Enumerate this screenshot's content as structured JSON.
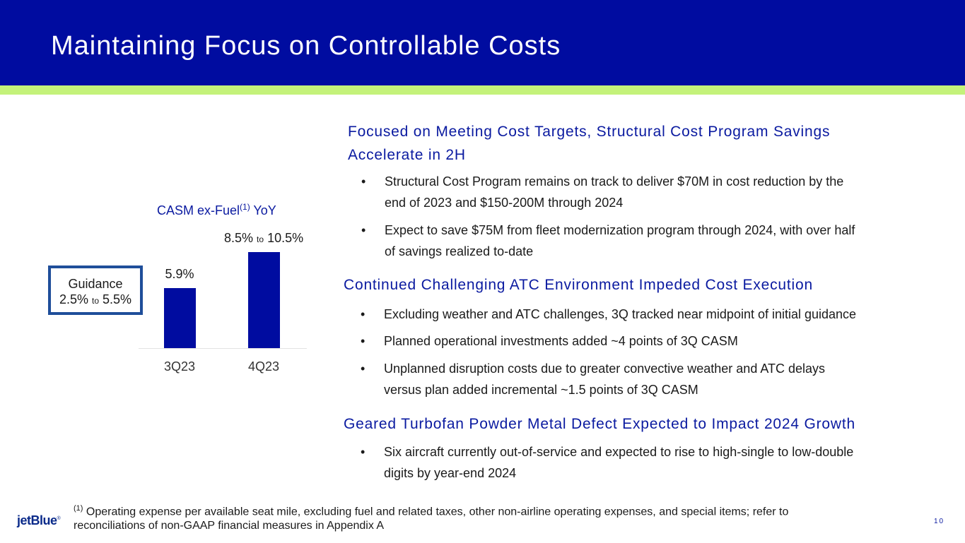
{
  "slide": {
    "title": "Maintaining Focus on Controllable Costs",
    "page_number": "10"
  },
  "chart_data": {
    "type": "bar",
    "title": "CASM ex-Fuel",
    "title_superscript": "(1)",
    "title_suffix": "YoY",
    "categories": [
      "3Q23",
      "4Q23"
    ],
    "values": [
      5.9,
      9.5
    ],
    "value_labels": [
      {
        "main": "5.9%"
      },
      {
        "low": "8.5%",
        "sep": "to",
        "high": "10.5%"
      }
    ],
    "ylim": [
      0,
      11
    ],
    "guidance": {
      "label": "Guidance",
      "low": "2.5%",
      "sep": "to",
      "high": "5.5%"
    },
    "colors": {
      "bar": "#000ca0"
    }
  },
  "sections": [
    {
      "heading": "Focused on Meeting Cost Targets, Structural Cost Program Savings",
      "heading_line2": "Accelerate in 2H",
      "bullets": [
        {
          "line1": "Structural Cost Program remains on track to deliver $70M in cost reduction by the",
          "line2": "end of 2023 and $150-200M through 2024"
        },
        {
          "line1": "Expect to save $75M from fleet modernization program through 2024, with over half",
          "line2": "of savings realized to-date"
        }
      ]
    },
    {
      "heading": "Continued Challenging ATC Environment Impeded Cost Execution",
      "bullets": [
        {
          "line1": "Excluding weather and ATC challenges, 3Q tracked near midpoint of initial guidance"
        },
        {
          "line1": "Planned operational investments added ~4 points of 3Q CASM"
        },
        {
          "line1": "Unplanned disruption costs due to greater convective weather and ATC delays",
          "line2": "versus plan added incremental ~1.5 points of 3Q CASM"
        }
      ]
    },
    {
      "heading": "Geared Turbofan Powder Metal Defect Expected to Impact 2024 Growth",
      "bullets": [
        {
          "line1": "Six aircraft currently out-of-service and expected to rise to high-single to low-double",
          "line2": "digits by year-end 2024"
        }
      ]
    }
  ],
  "bullet_char": "•",
  "footnote": {
    "marker": "(1)",
    "line1": "Operating expense per available seat mile, excluding fuel and related taxes, other non-airline operating expenses, and special items; refer to",
    "line2": "reconciliations of non-GAAP financial measures in Appendix A"
  },
  "logo": {
    "text": "jetBlue",
    "mark": "®"
  },
  "colors": {
    "header": "#000ca0",
    "stripe": "#c4f27a",
    "accent_text": "#0a1aa0"
  }
}
